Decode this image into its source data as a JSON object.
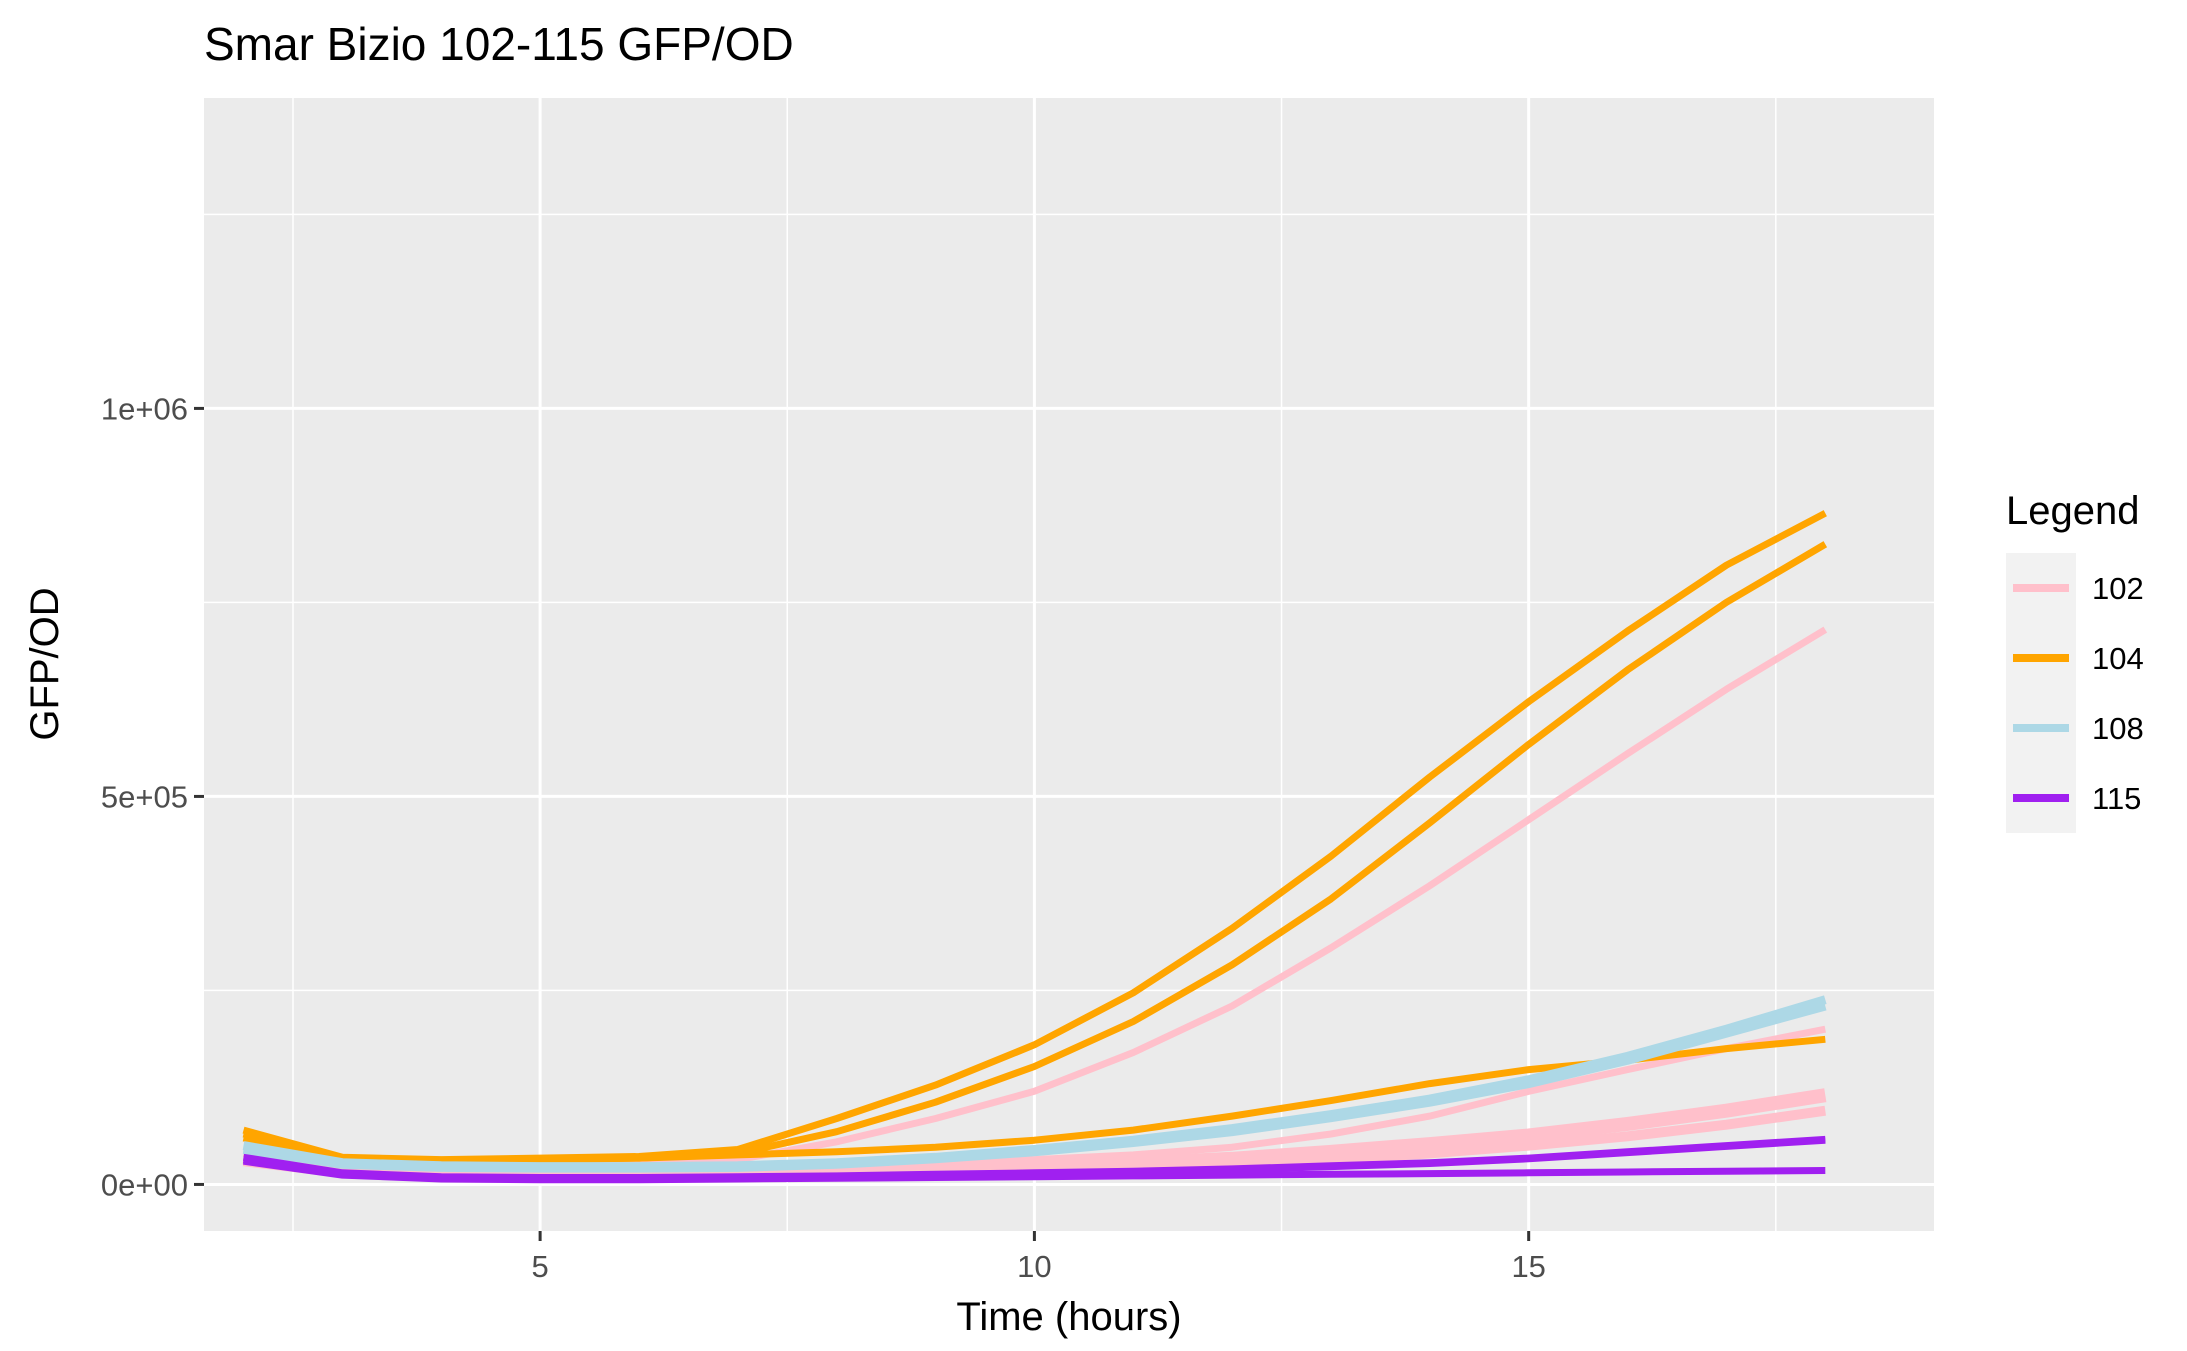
{
  "chart_data": {
    "type": "line",
    "title": "Smar Bizio 102-115 GFP/OD",
    "xlabel": "Time (hours)",
    "ylabel": "GFP/OD",
    "xlim": [
      1.6,
      19.1
    ],
    "ylim": [
      -60000,
      1400000
    ],
    "x_ticks": [
      5,
      10,
      15
    ],
    "x_tick_labels": [
      "5",
      "10",
      "15"
    ],
    "x_minor_ticks": [
      2.5,
      7.5,
      12.5,
      17.5
    ],
    "y_ticks": [
      0,
      500000,
      1000000
    ],
    "y_tick_labels": [
      "0e+00",
      "5e+05",
      "1e+06"
    ],
    "y_minor_ticks": [
      250000,
      750000,
      1250000
    ],
    "grid": true,
    "legend": {
      "title": "Legend",
      "position": "right",
      "entries": [
        {
          "label": "102",
          "color": "#FFC0CB"
        },
        {
          "label": "104",
          "color": "#FFA500"
        },
        {
          "label": "108",
          "color": "#ADD8E6"
        },
        {
          "label": "115",
          "color": "#A020F0"
        }
      ]
    },
    "x": [
      2,
      3,
      4,
      5,
      6,
      7,
      8,
      9,
      10,
      11,
      12,
      13,
      14,
      15,
      16,
      17,
      18
    ],
    "series": [
      {
        "name": "102",
        "color": "#FFC0CB",
        "width": 7,
        "values": [
          40000,
          25000,
          22000,
          24000,
          26000,
          32000,
          55000,
          85000,
          120000,
          170000,
          230000,
          305000,
          385000,
          470000,
          555000,
          638000,
          715000
        ]
      },
      {
        "name": "102",
        "color": "#FFC0CB",
        "width": 7,
        "values": [
          40000,
          23000,
          20000,
          21000,
          22000,
          22000,
          24000,
          27000,
          32000,
          38000,
          48000,
          65000,
          88000,
          120000,
          148000,
          175000,
          200000
        ]
      },
      {
        "name": "102",
        "color": "#FFC0CB",
        "width": 14,
        "values": [
          35000,
          18000,
          12000,
          11000,
          11000,
          12000,
          14000,
          18000,
          22000,
          27000,
          33000,
          42000,
          52000,
          63000,
          78000,
          95000,
          115000
        ]
      },
      {
        "name": "102",
        "color": "#FFC0CB",
        "width": 10,
        "values": [
          30000,
          15000,
          10000,
          9000,
          9000,
          10000,
          11000,
          13000,
          16000,
          20000,
          25000,
          32000,
          40000,
          50000,
          62000,
          77000,
          95000
        ]
      },
      {
        "name": "104",
        "color": "#FFA500",
        "width": 7,
        "values": [
          70000,
          35000,
          32000,
          34000,
          36000,
          45000,
          85000,
          128000,
          180000,
          247000,
          330000,
          423000,
          525000,
          622000,
          713000,
          798000,
          865000
        ]
      },
      {
        "name": "104",
        "color": "#FFA500",
        "width": 7,
        "values": [
          65000,
          33000,
          30000,
          32000,
          34000,
          40000,
          68000,
          106000,
          152000,
          210000,
          283000,
          368000,
          466000,
          567000,
          663000,
          750000,
          825000
        ]
      },
      {
        "name": "104",
        "color": "#FFA500",
        "width": 7,
        "values": [
          60000,
          32000,
          30000,
          32000,
          34000,
          38000,
          42000,
          48000,
          57000,
          70000,
          88000,
          108000,
          130000,
          148000,
          160000,
          175000,
          187000
        ]
      },
      {
        "name": "108",
        "color": "#ADD8E6",
        "width": 9,
        "values": [
          50000,
          28000,
          24000,
          23000,
          23000,
          24000,
          28000,
          35000,
          45000,
          57000,
          72000,
          90000,
          110000,
          135000,
          165000,
          200000,
          238000
        ]
      },
      {
        "name": "108",
        "color": "#ADD8E6",
        "width": 9,
        "values": [
          45000,
          26000,
          22000,
          21000,
          21000,
          22000,
          26000,
          33000,
          42000,
          54000,
          68000,
          86000,
          106000,
          130000,
          160000,
          195000,
          230000
        ]
      },
      {
        "name": "115",
        "color": "#A020F0",
        "width": 7,
        "values": [
          35000,
          15000,
          10000,
          9000,
          9000,
          10000,
          11000,
          13000,
          15000,
          17000,
          20000,
          24000,
          28000,
          34000,
          42000,
          50000,
          58000
        ]
      },
      {
        "name": "115",
        "color": "#A020F0",
        "width": 7,
        "values": [
          32000,
          14000,
          9000,
          8000,
          8000,
          9000,
          10000,
          12000,
          14000,
          16000,
          19000,
          23000,
          27000,
          33000,
          41000,
          49000,
          57000
        ]
      },
      {
        "name": "115",
        "color": "#A020F0",
        "width": 7,
        "values": [
          30000,
          12000,
          7000,
          6000,
          6000,
          7000,
          8000,
          9000,
          10000,
          11000,
          12000,
          13000,
          14000,
          15000,
          16000,
          17000,
          18000
        ]
      }
    ]
  }
}
